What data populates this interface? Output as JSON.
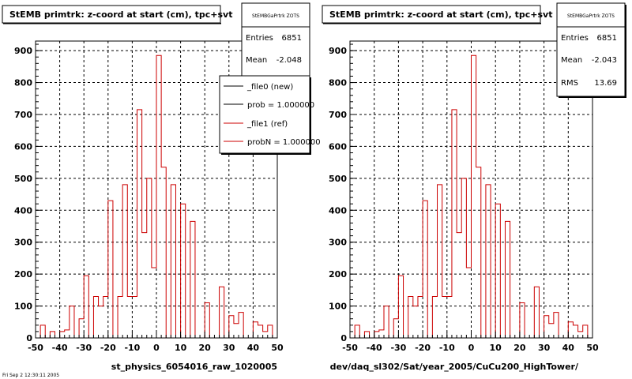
{
  "chart_data": [
    {
      "type": "bar",
      "style": "step-histogram",
      "title": "StEMB primtrk: z-coord at start (cm), tpc+svt",
      "xlabel": "st_physics_6054016_raw_1020005",
      "ylabel": "",
      "xlim": [
        -50,
        50
      ],
      "ylim": [
        0,
        930
      ],
      "xticks": [
        "-50",
        "-40",
        "-30",
        "-20",
        "-10",
        "0",
        "10",
        "20",
        "30",
        "40",
        "50"
      ],
      "yticks": [
        "0",
        "100",
        "200",
        "300",
        "400",
        "500",
        "600",
        "700",
        "800",
        "900"
      ],
      "grid": true,
      "color": "#cc0000",
      "bin_width": 2,
      "x_start": -50,
      "values": [
        0,
        40,
        0,
        20,
        0,
        20,
        25,
        100,
        0,
        60,
        195,
        0,
        130,
        100,
        130,
        430,
        0,
        130,
        480,
        130,
        130,
        715,
        330,
        500,
        220,
        885,
        535,
        0,
        480,
        0,
        420,
        0,
        365,
        0,
        0,
        110,
        0,
        0,
        160,
        0,
        70,
        45,
        80,
        0,
        0,
        50,
        40,
        20,
        40,
        0
      ],
      "stats": {
        "name": "StEMBGaPrtrk ZOTS",
        "entries_label": "Entries",
        "entries": "6851",
        "mean_label": "Mean",
        "mean": "-2.048"
      },
      "legend": {
        "position": "top-right",
        "entries": [
          {
            "label": "_file0 (new)",
            "color": "#000000"
          },
          {
            "label": "prob = 1.000000",
            "color": "#000000"
          },
          {
            "label": "_file1 (ref)",
            "color": "#cc0000"
          },
          {
            "label": "probN = 1.000000",
            "color": "#cc0000"
          }
        ]
      }
    },
    {
      "type": "bar",
      "style": "step-histogram",
      "title": "StEMB primtrk: z-coord at start (cm), tpc+svt",
      "xlabel": "dev/daq_sl302/Sat/year_2005/CuCu200_HighTower/",
      "ylabel": "",
      "xlim": [
        -50,
        50
      ],
      "ylim": [
        0,
        930
      ],
      "xticks": [
        "-50",
        "-40",
        "-30",
        "-20",
        "-10",
        "0",
        "10",
        "20",
        "30",
        "40",
        "50"
      ],
      "yticks": [
        "0",
        "100",
        "200",
        "300",
        "400",
        "500",
        "600",
        "700",
        "800",
        "900"
      ],
      "grid": true,
      "color": "#cc0000",
      "bin_width": 2,
      "x_start": -50,
      "values": [
        0,
        40,
        0,
        20,
        0,
        20,
        25,
        100,
        0,
        60,
        195,
        0,
        130,
        100,
        130,
        430,
        0,
        130,
        480,
        130,
        130,
        715,
        330,
        500,
        220,
        885,
        535,
        0,
        480,
        0,
        420,
        0,
        365,
        0,
        0,
        110,
        0,
        0,
        160,
        0,
        70,
        45,
        80,
        0,
        0,
        50,
        40,
        20,
        40,
        0
      ],
      "stats": {
        "name": "StEMBGaPrtrk ZOTS",
        "entries_label": "Entries",
        "entries": "6851",
        "mean_label": "Mean",
        "mean": "-2.043",
        "rms_label": "RMS",
        "rms": "13.69"
      }
    }
  ],
  "footer": "Fri Sep 2 12:30:11 2005"
}
